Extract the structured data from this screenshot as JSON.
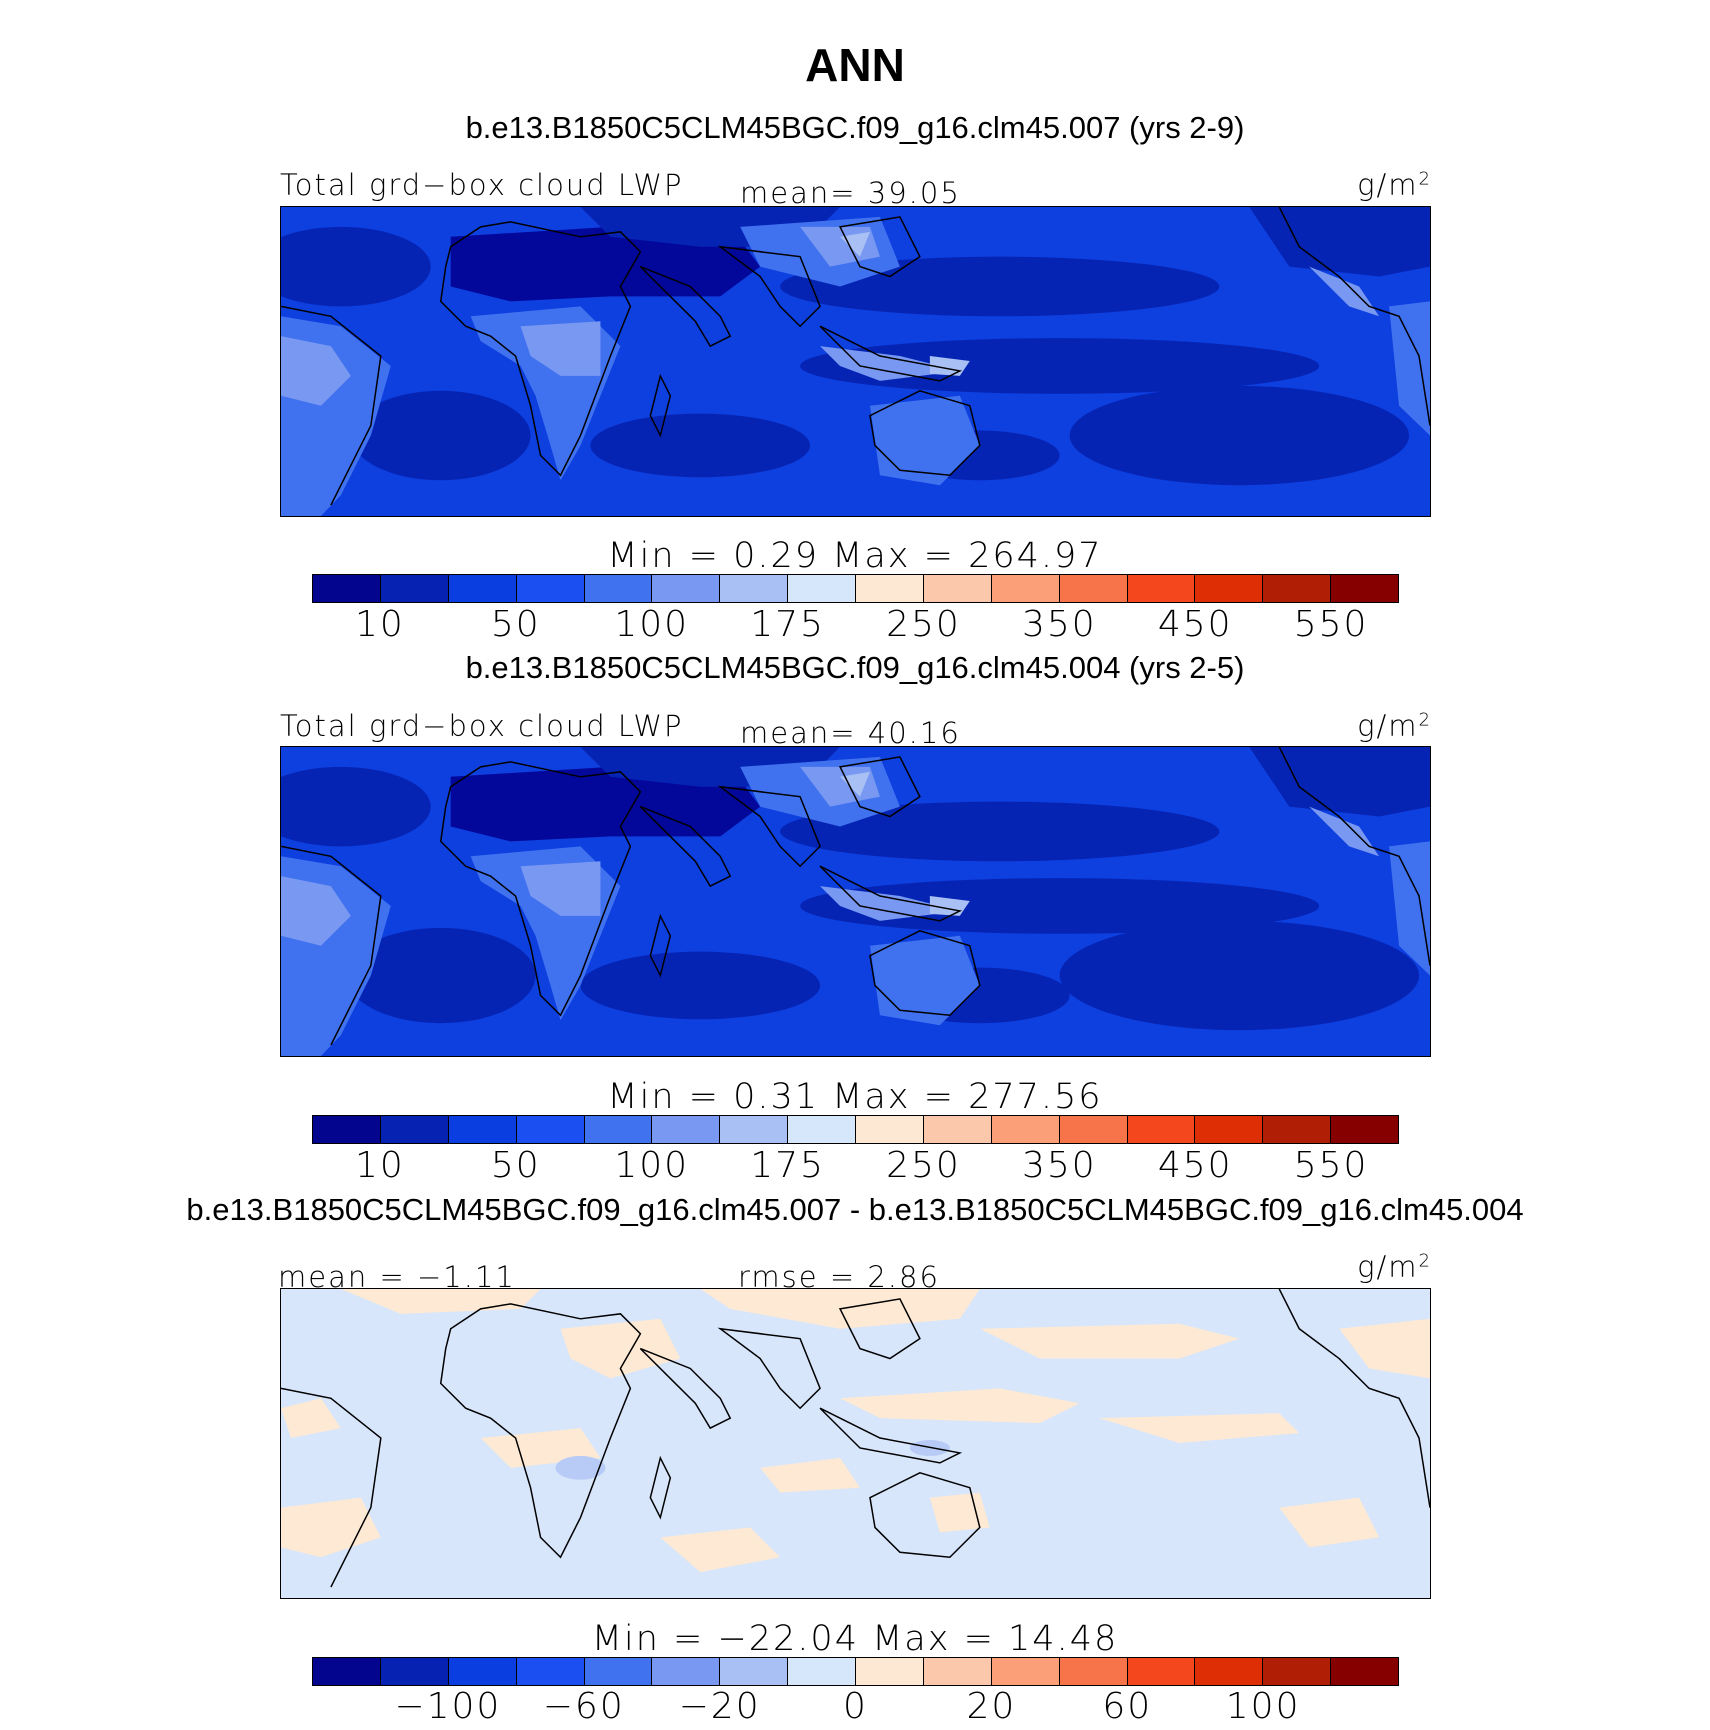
{
  "figure": {
    "title": "ANN"
  },
  "panels": [
    {
      "case_title": "b.e13.B1850C5CLM45BGC.f09_g16.clm45.007 (yrs 2-9)",
      "left_label": "Total grd−box cloud LWP",
      "center_label": "mean=  39.05",
      "units": "g/m",
      "units_exp": "2",
      "min_max": "Min =    0.29  Max = 264.97",
      "colorbar_ticks": [
        "10",
        "50",
        "100",
        "175",
        "250",
        "350",
        "450",
        "550"
      ]
    },
    {
      "case_title": "b.e13.B1850C5CLM45BGC.f09_g16.clm45.004 (yrs 2-5)",
      "left_label": "Total grd−box cloud LWP",
      "center_label": "mean=  40.16",
      "units": "g/m",
      "units_exp": "2",
      "min_max": "Min =    0.31  Max = 277.56",
      "colorbar_ticks": [
        "10",
        "50",
        "100",
        "175",
        "250",
        "350",
        "450",
        "550"
      ]
    },
    {
      "case_title": "b.e13.B1850C5CLM45BGC.f09_g16.clm45.007 - b.e13.B1850C5CLM45BGC.f09_g16.clm45.004",
      "left_label": "mean =  −1.11",
      "center_label": "rmse =    2.86",
      "units": "g/m",
      "units_exp": "2",
      "min_max": "Min = −22.04  Max =   14.48",
      "colorbar_ticks": [
        "−100",
        "−60",
        "−20",
        "0",
        "20",
        "60",
        "100"
      ]
    }
  ],
  "colorbar_colors": [
    "#03058f",
    "#0622b3",
    "#0a3ee0",
    "#1c4ff2",
    "#4072f0",
    "#7898f2",
    "#a9c0f5",
    "#d6e7fb",
    "#fde8d3",
    "#fcc8ab",
    "#fa9f77",
    "#f7744a",
    "#f4471d",
    "#de2e06",
    "#b01f05",
    "#860000"
  ],
  "map_colors": {
    "field_base": "#0e3fdf",
    "field_dark": "#0624b4",
    "field_darkest": "#03079a",
    "field_light": "#4072f0",
    "field_lighter": "#7898f2",
    "field_lightest": "#a9c0f5",
    "diff_base": "#d7e6fb",
    "diff_pos": "#fde9d4",
    "diff_neg": "#b7cbf6",
    "coast": "#000000"
  }
}
